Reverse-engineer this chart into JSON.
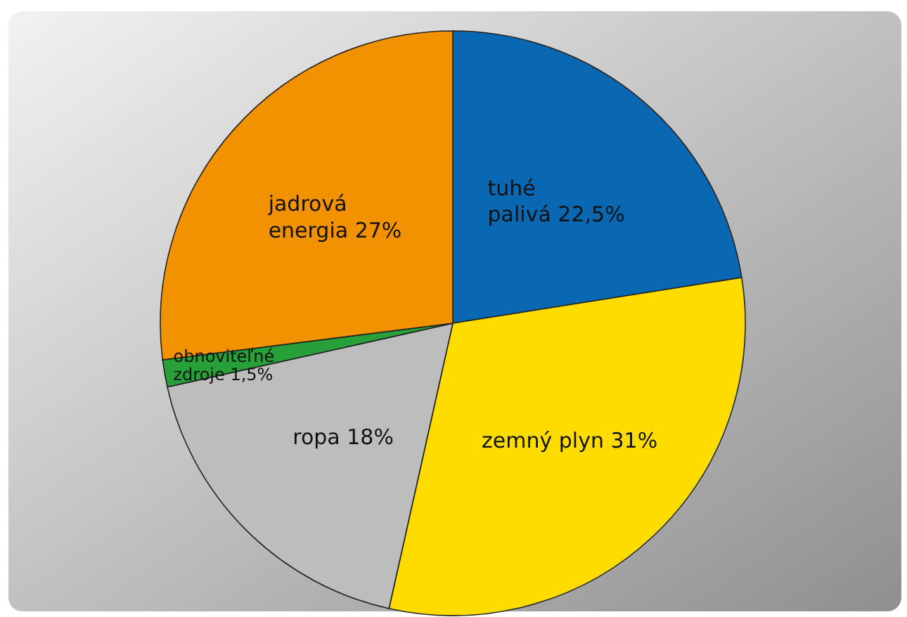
{
  "chart_data": {
    "type": "pie",
    "categories": [
      "tuhé palivá",
      "zemný plyn",
      "ropa",
      "obnoviteľné zdroje",
      "jadrová energia"
    ],
    "values": [
      22.5,
      31,
      18,
      1.5,
      27
    ],
    "value_labels": [
      "22,5%",
      "31%",
      "18%",
      "1,5%",
      "27%"
    ],
    "colors": [
      "#0a68b2",
      "#ffdc00",
      "#bdbdbd",
      "#27a03a",
      "#f39200"
    ]
  }
}
